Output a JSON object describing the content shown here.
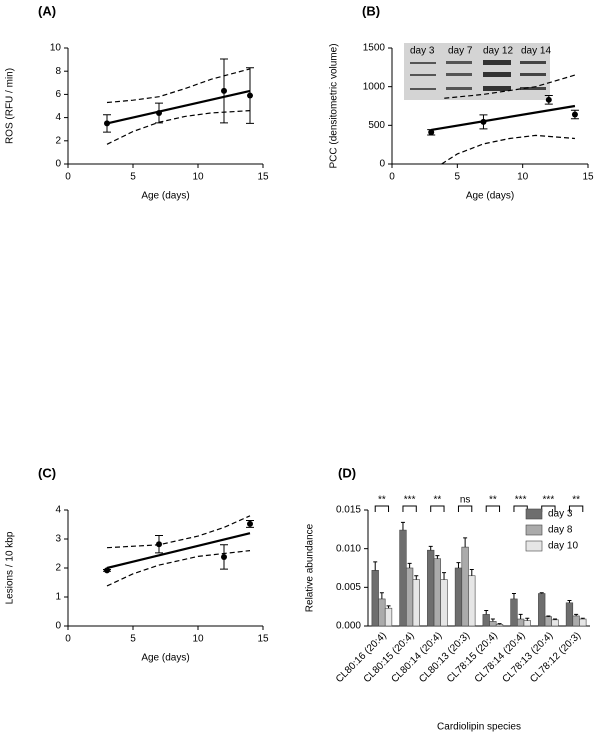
{
  "chart_data": [
    {
      "type": "scatter",
      "panel_label": "(A)",
      "xlabel": "Age (days)",
      "ylabel": "ROS (RFU / min)",
      "x": [
        3,
        7,
        12,
        14
      ],
      "values": [
        3.5,
        4.4,
        6.3,
        5.9
      ],
      "errors": [
        0.75,
        0.85,
        2.75,
        2.4
      ],
      "fit": {
        "x": [
          3,
          14
        ],
        "values": [
          3.5,
          6.3
        ]
      },
      "band_upper": {
        "x": [
          3,
          5,
          7,
          9,
          11,
          14
        ],
        "values": [
          5.3,
          5.5,
          5.8,
          6.5,
          7.3,
          8.2
        ]
      },
      "band_lower": {
        "x": [
          3,
          5,
          7,
          9,
          11,
          14
        ],
        "values": [
          1.7,
          2.8,
          3.6,
          4.1,
          4.4,
          4.6
        ]
      },
      "xlim": [
        0,
        15
      ],
      "xticks": [
        0,
        5,
        10,
        15
      ],
      "ylim": [
        0,
        10
      ],
      "yticks": [
        0,
        2,
        4,
        6,
        8,
        10
      ],
      "color": "#000000"
    },
    {
      "type": "scatter",
      "panel_label": "(B)",
      "xlabel": "Age (days)",
      "ylabel": "PCC (densitometric volume)",
      "x": [
        3,
        7,
        12,
        14
      ],
      "values": [
        410,
        545,
        830,
        640
      ],
      "errors": [
        35,
        90,
        55,
        55
      ],
      "fit": {
        "x": [
          3,
          14
        ],
        "values": [
          440,
          750
        ]
      },
      "band_upper": {
        "x": [
          4,
          7,
          9,
          11,
          14
        ],
        "values": [
          850,
          900,
          950,
          1000,
          1150
        ]
      },
      "band_lower": {
        "x": [
          3.8,
          5,
          7,
          9,
          11,
          14
        ],
        "values": [
          0,
          130,
          260,
          330,
          370,
          330
        ]
      },
      "inset_labels": [
        "day 3",
        "day 7",
        "day 12",
        "day 14"
      ],
      "xlim": [
        0,
        15
      ],
      "xticks": [
        0,
        5,
        10,
        15
      ],
      "ylim": [
        0,
        1500
      ],
      "yticks": [
        0,
        500,
        1000,
        1500
      ],
      "color": "#000000"
    },
    {
      "type": "scatter",
      "panel_label": "(C)",
      "xlabel": "Age (days)",
      "ylabel": "Lesions / 10 kbp",
      "x": [
        3,
        7,
        12,
        14
      ],
      "values": [
        1.92,
        2.82,
        2.38,
        3.52
      ],
      "errors": [
        0.03,
        0.3,
        0.42,
        0.12
      ],
      "fit": {
        "x": [
          3,
          14
        ],
        "values": [
          2.0,
          3.2
        ]
      },
      "band_upper": {
        "x": [
          3,
          7,
          10,
          12,
          14
        ],
        "values": [
          2.7,
          2.8,
          3.1,
          3.4,
          3.8
        ]
      },
      "band_lower": {
        "x": [
          3,
          5,
          7,
          10,
          12,
          14
        ],
        "values": [
          1.38,
          1.8,
          2.1,
          2.4,
          2.5,
          2.6
        ]
      },
      "xlim": [
        0,
        15
      ],
      "xticks": [
        0,
        5,
        10,
        15
      ],
      "ylim": [
        0,
        4
      ],
      "yticks": [
        0,
        1,
        2,
        3,
        4
      ],
      "color": "#000000"
    },
    {
      "type": "bar",
      "panel_label": "(D)",
      "xlabel": "Cardiolipin species",
      "ylabel": "Relative abundance",
      "categories": [
        "CL80:16 (20:4)",
        "CL80:15 (20:4)",
        "CL80:14 (20:4)",
        "CL80:13 (20:3)",
        "CL78:15 (20:4)",
        "CL78:14 (20:4)",
        "CL78:13 (20:4)",
        "CL78:12 (20:3)"
      ],
      "series": [
        {
          "name": "day 3",
          "color": "#6e6e6e",
          "values": [
            0.0072,
            0.0124,
            0.0098,
            0.0075,
            0.0015,
            0.0035,
            0.0042,
            0.003
          ],
          "errors": [
            0.0011,
            0.001,
            0.0005,
            0.0007,
            0.0005,
            0.0007,
            0.0001,
            0.0003
          ]
        },
        {
          "name": "day 8",
          "color": "#ababab",
          "values": [
            0.0035,
            0.0075,
            0.0087,
            0.0102,
            0.0006,
            0.0009,
            0.0012,
            0.0013
          ],
          "errors": [
            0.0008,
            0.0006,
            0.0004,
            0.0012,
            0.0003,
            0.0006,
            0.0001,
            0.0002
          ]
        },
        {
          "name": "day 10",
          "color": "#e6e6e6",
          "values": [
            0.0023,
            0.006,
            0.006,
            0.0065,
            0.0002,
            0.0007,
            0.0008,
            0.0009
          ],
          "errors": [
            0.0003,
            0.0005,
            0.0009,
            0.0008,
            0.0001,
            0.0003,
            0.0001,
            0.0001
          ]
        }
      ],
      "annotations": [
        "**",
        "***",
        "**",
        "ns",
        "**",
        "***",
        "***",
        "**"
      ],
      "legend": "upper right",
      "ylim": [
        0,
        0.015
      ],
      "yticks": [
        {
          "value": 0,
          "label": "0.000"
        },
        {
          "value": 0.005,
          "label": "0.005"
        },
        {
          "value": 0.01,
          "label": "0.010"
        },
        {
          "value": 0.015,
          "label": "0.015"
        }
      ]
    }
  ]
}
